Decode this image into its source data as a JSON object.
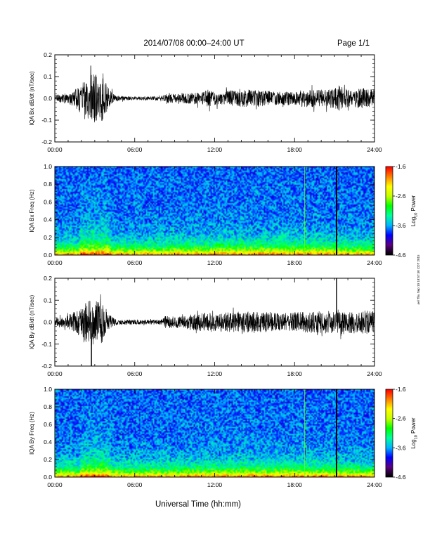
{
  "header": {
    "title": "2014/07/08   00:00–24:00 UT",
    "page_label": "Page 1/1"
  },
  "side_note": "ael Thu Sep 10 18:57:40 CDT 2015",
  "xlabel": "Universal Time (hh:mm)",
  "colorbar": {
    "ticks": [
      "-1.6",
      "-2.6",
      "-3.6",
      "-4.6"
    ],
    "label_base": "Log",
    "label_sub": "10",
    "label_suffix": " Power",
    "range": [
      -4.6,
      -1.6
    ],
    "colormap": [
      "#000000",
      "#5a0080",
      "#0000ff",
      "#00b4ff",
      "#00ffa0",
      "#00ff00",
      "#c8ff00",
      "#ffff00",
      "#ff8000",
      "#ff0000"
    ]
  },
  "chart_data": [
    {
      "type": "line",
      "ylabel": "IQA Bx dB/dt (nT/sec)",
      "x_ticks": [
        "00:00",
        "06:00",
        "12:00",
        "18:00",
        "24:00"
      ],
      "xlim": [
        0,
        24
      ],
      "ylim": [
        -0.2,
        0.2
      ],
      "y_ticks": [
        "0.2",
        "0.1",
        "0.0",
        "-0.1",
        "-0.2"
      ],
      "series": [
        {
          "x_hours": [
            0,
            0.5,
            1.0,
            1.5,
            2.0,
            2.2,
            2.5,
            2.8,
            3.0,
            3.3,
            3.5,
            3.8,
            4.0,
            4.5,
            5.0,
            6.0,
            7.0,
            8.0,
            8.3,
            9.0,
            10.0,
            11.0,
            11.5,
            12.0,
            13.0,
            14.0,
            15.0,
            16.0,
            17.0,
            18.0,
            19.0,
            20.0,
            21.0,
            21.3,
            22.0,
            23.0,
            24.0
          ],
          "amplitude": [
            0.015,
            0.02,
            0.025,
            0.04,
            0.07,
            0.09,
            0.1,
            0.11,
            0.12,
            0.1,
            0.11,
            0.08,
            0.05,
            0.015,
            0.01,
            0.008,
            0.008,
            0.01,
            0.025,
            0.02,
            0.025,
            0.03,
            0.04,
            0.03,
            0.035,
            0.04,
            0.04,
            0.035,
            0.03,
            0.035,
            0.04,
            0.04,
            0.045,
            0.06,
            0.04,
            0.045,
            0.04
          ]
        }
      ]
    },
    {
      "type": "heatmap",
      "ylabel": "IQA Bx Freq (Hz)",
      "x_ticks": [
        "00:00",
        "06:00",
        "12:00",
        "18:00",
        "24:00"
      ],
      "xlim": [
        0,
        24
      ],
      "ylim": [
        0.0,
        1.0
      ],
      "y_ticks": [
        "1.0",
        "0.8",
        "0.6",
        "0.4",
        "0.2",
        "0.0"
      ],
      "zlim": [
        -4.6,
        -1.6
      ],
      "gaps_hours": [
        21.15
      ],
      "lines_hours": [
        18.75
      ]
    },
    {
      "type": "line",
      "ylabel": "IQA By dB/dt (nT/sec)",
      "x_ticks": [
        "00:00",
        "06:00",
        "12:00",
        "18:00",
        "24:00"
      ],
      "xlim": [
        0,
        24
      ],
      "ylim": [
        -0.2,
        0.2
      ],
      "y_ticks": [
        "0.2",
        "0.1",
        "0.0",
        "-0.1",
        "-0.2"
      ],
      "series": [
        {
          "x_hours": [
            0,
            0.5,
            1.0,
            1.5,
            2.0,
            2.2,
            2.5,
            2.8,
            3.0,
            3.3,
            3.5,
            3.8,
            4.0,
            4.5,
            5.0,
            6.0,
            7.0,
            8.0,
            8.3,
            9.0,
            10.0,
            11.0,
            11.5,
            12.0,
            13.0,
            14.0,
            15.0,
            16.0,
            17.0,
            18.0,
            19.0,
            20.0,
            21.0,
            21.3,
            22.0,
            23.0,
            24.0
          ],
          "amplitude": [
            0.02,
            0.025,
            0.03,
            0.05,
            0.07,
            0.08,
            0.1,
            0.11,
            0.1,
            0.09,
            0.1,
            0.07,
            0.04,
            0.015,
            0.012,
            0.01,
            0.01,
            0.012,
            0.03,
            0.025,
            0.035,
            0.04,
            0.05,
            0.04,
            0.045,
            0.05,
            0.05,
            0.045,
            0.04,
            0.045,
            0.05,
            0.05,
            0.055,
            0.06,
            0.05,
            0.055,
            0.05
          ]
        }
      ],
      "spikes": [
        {
          "x_hours": 2.75,
          "y": -0.2
        },
        {
          "x_hours": 21.15,
          "y": 0.2
        }
      ]
    },
    {
      "type": "heatmap",
      "ylabel": "IQA By Freq (Hz)",
      "x_ticks": [
        "00:00",
        "06:00",
        "12:00",
        "18:00",
        "24:00"
      ],
      "xlim": [
        0,
        24
      ],
      "ylim": [
        0.0,
        1.0
      ],
      "y_ticks": [
        "1.0",
        "0.8",
        "0.6",
        "0.4",
        "0.2",
        "0.0"
      ],
      "zlim": [
        -4.6,
        -1.6
      ],
      "gaps_hours": [
        21.15
      ],
      "lines_hours": [
        18.75
      ]
    }
  ]
}
